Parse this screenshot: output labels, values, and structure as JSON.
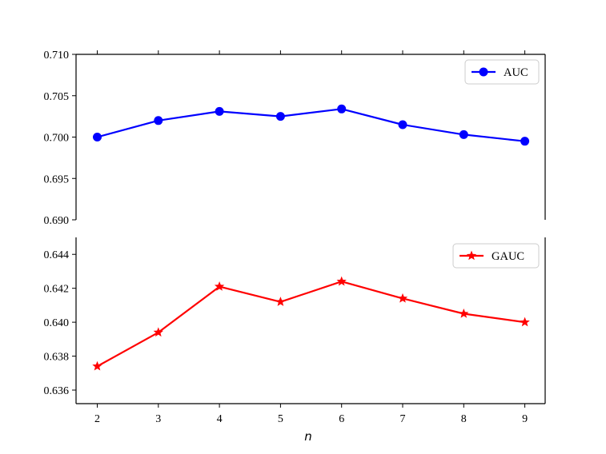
{
  "chart_data": [
    {
      "type": "line",
      "x": [
        2,
        3,
        4,
        5,
        6,
        7,
        8,
        9
      ],
      "series": [
        {
          "name": "AUC",
          "color": "#0000ff",
          "marker": "circle",
          "values": [
            0.7,
            0.702,
            0.7031,
            0.7025,
            0.7034,
            0.7015,
            0.7003,
            0.6995
          ]
        }
      ],
      "ylim": [
        0.69,
        0.71
      ],
      "yticks": [
        "0.690",
        "0.695",
        "0.700",
        "0.705",
        "0.710"
      ],
      "xticks_labeled": false,
      "legend": "upper-right",
      "grid": false
    },
    {
      "type": "line",
      "x": [
        2,
        3,
        4,
        5,
        6,
        7,
        8,
        9
      ],
      "series": [
        {
          "name": "GAUC",
          "color": "#ff0000",
          "marker": "star",
          "values": [
            0.6374,
            0.6394,
            0.6421,
            0.6412,
            0.6424,
            0.6414,
            0.6405,
            0.64
          ]
        }
      ],
      "ylim": [
        0.6352,
        0.645
      ],
      "yticks": [
        "0.636",
        "0.638",
        "0.640",
        "0.642",
        "0.644"
      ],
      "xticks": [
        "2",
        "3",
        "4",
        "5",
        "6",
        "7",
        "8",
        "9"
      ],
      "xlabel": "n",
      "legend": "upper-right",
      "grid": false
    }
  ]
}
